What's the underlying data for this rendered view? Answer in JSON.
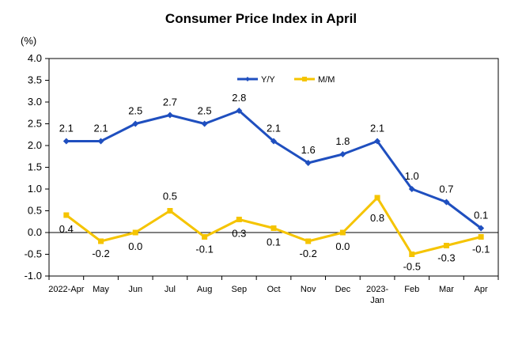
{
  "chart_data": {
    "type": "line",
    "title": "Consumer Price Index in April",
    "ylabel": "(%)",
    "xlabel": "",
    "ylim": [
      -1.0,
      4.0
    ],
    "ytick_labels": [
      "-1.0",
      "-0.5",
      "0.0",
      "0.5",
      "1.0",
      "1.5",
      "2.0",
      "2.5",
      "3.0",
      "3.5",
      "4.0"
    ],
    "categories": [
      [
        "2022-Apr"
      ],
      [
        "May"
      ],
      [
        "Jun"
      ],
      [
        "Jul"
      ],
      [
        "Aug"
      ],
      [
        "Sep"
      ],
      [
        "Oct"
      ],
      [
        "Nov"
      ],
      [
        "Dec"
      ],
      [
        "2023-",
        "Jan"
      ],
      [
        "Feb"
      ],
      [
        "Mar"
      ],
      [
        "Apr"
      ]
    ],
    "grid": false,
    "legend_position": "top-left",
    "series": [
      {
        "name": "Y/Y",
        "color": "#1f4fbf",
        "marker": "diamond",
        "values": [
          2.1,
          2.1,
          2.5,
          2.7,
          2.5,
          2.8,
          2.1,
          1.6,
          1.8,
          2.1,
          1.0,
          0.7,
          0.1
        ],
        "labels": [
          "2.1",
          "2.1",
          "2.5",
          "2.7",
          "2.5",
          "2.8",
          "2.1",
          "1.6",
          "1.8",
          "2.1",
          "1.0",
          "0.7",
          "0.1"
        ]
      },
      {
        "name": "M/M",
        "color": "#f5c400",
        "marker": "square",
        "values": [
          0.4,
          -0.2,
          0.0,
          0.5,
          -0.1,
          0.3,
          0.1,
          -0.2,
          0.0,
          0.8,
          -0.5,
          -0.3,
          -0.1
        ],
        "labels": [
          "0.4",
          "-0.2",
          "0.0",
          "0.5",
          "-0.1",
          "0.3",
          "0.1",
          "-0.2",
          "0.0",
          "0.8",
          "-0.5",
          "-0.3",
          "-0.1"
        ]
      }
    ]
  }
}
